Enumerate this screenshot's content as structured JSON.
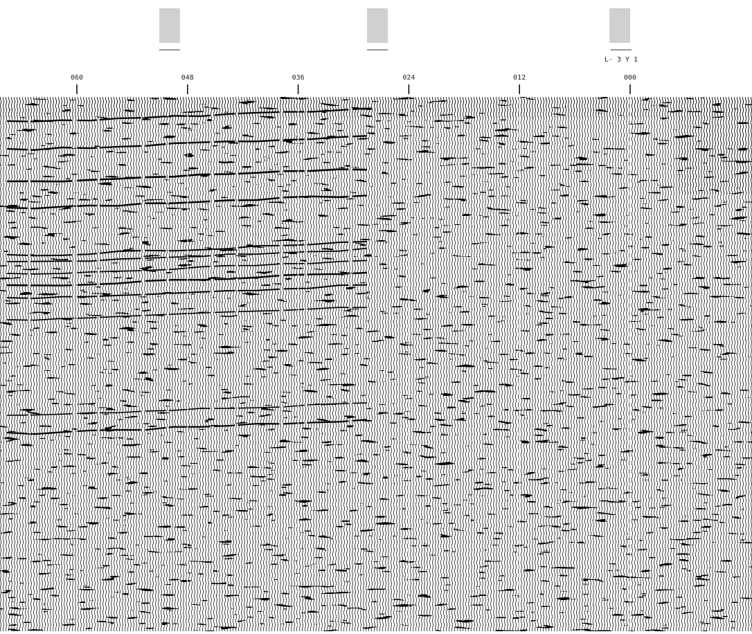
{
  "header": {
    "line_label": "L- 3 Y 1"
  },
  "shotpoints": [
    "060",
    "048",
    "036",
    "024",
    "012",
    "000"
  ]
}
